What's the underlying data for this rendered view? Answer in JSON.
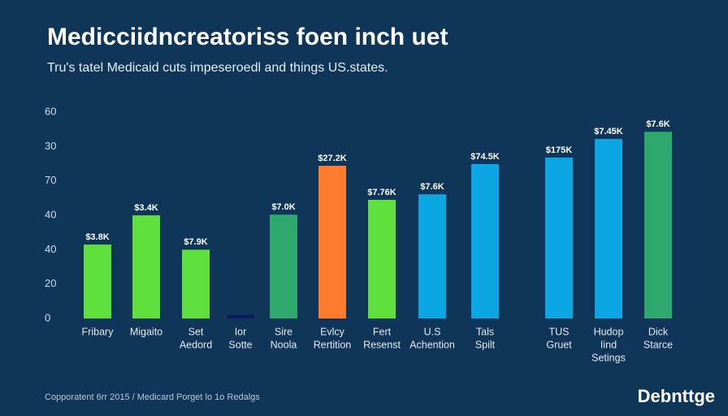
{
  "chart_data": {
    "type": "bar",
    "title": "Medicciidncreatoriss foen inch uet",
    "subtitle": "Tru's tatel Medicaid cuts impeseroedl and things US.states.",
    "footer": "Copporatent 6rr 2015 / Medicard Porget lo 1o Redalgs",
    "logo": "Debnttge",
    "categories": [
      [
        "Fribary"
      ],
      [
        "Migaito"
      ],
      [
        "Set",
        "Aedord"
      ],
      [
        "Ior",
        "Sotte"
      ],
      [
        "Sire",
        "Noola"
      ],
      [
        "Evlcy",
        "Rertition"
      ],
      [
        "Fert",
        "Resenst"
      ],
      [
        "U.S",
        "Achention"
      ],
      [
        "Tals",
        "Spilt"
      ],
      [
        "TUS",
        "Gruet"
      ],
      [
        "Hudop",
        "Iind",
        "Setings"
      ],
      [
        "Dick",
        "Starce"
      ]
    ],
    "values": [
      21.5,
      30,
      20,
      1,
      30.2,
      44.4,
      34.5,
      36.1,
      44.9,
      46.8,
      52.2,
      54.3
    ],
    "value_labels": [
      "$3.8K",
      "$3.4K",
      "$7.9K",
      null,
      "$7.0K",
      "$27.2K",
      "$7.76K",
      "$7.6K",
      "$74.5K",
      "$175K",
      "$7.45K",
      "$7.6K"
    ],
    "colors": [
      "#5fe03d",
      "#5fe03d",
      "#5fe03d",
      "#0b1d5e",
      "#2ea86c",
      "#ff7b2e",
      "#5fe03d",
      "#0ba6e4",
      "#0ba6e4",
      "#0ba6e4",
      "#0ba6e4",
      "#2ea86c"
    ],
    "ylim": [
      0,
      60
    ],
    "yticks": [
      0,
      {
        "value": 10,
        "label": "20"
      },
      {
        "value": 20,
        "label": "40"
      },
      {
        "value": 30,
        "label": "40"
      },
      {
        "value": 40,
        "label": "70"
      },
      {
        "value": 50,
        "label": "30"
      },
      60
    ],
    "grid": false
  }
}
